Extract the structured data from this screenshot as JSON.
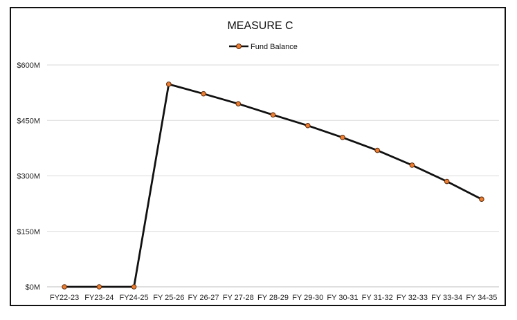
{
  "chart_data": {
    "type": "line",
    "title": "MEASURE C",
    "xlabel": "",
    "ylabel": "",
    "categories": [
      "FY22-23",
      "FY23-24",
      "FY24-25",
      "FY 25-26",
      "FY 26-27",
      "FY 27-28",
      "FY 28-29",
      "FY 29-30",
      "FY 30-31",
      "FY 31-32",
      "FY 32-33",
      "FY 33-34",
      "FY 34-35"
    ],
    "series": [
      {
        "name": "Fund Balance",
        "values": [
          0,
          0,
          0,
          548,
          522,
          495,
          465,
          436,
          404,
          369,
          329,
          285,
          237
        ],
        "color": "#111111",
        "marker_color": "#ed7d31"
      }
    ],
    "y_ticks": [
      {
        "value": 0,
        "label": "$0M"
      },
      {
        "value": 150,
        "label": "$150M"
      },
      {
        "value": 300,
        "label": "$300M"
      },
      {
        "value": 450,
        "label": "$450M"
      },
      {
        "value": 600,
        "label": "$600M"
      }
    ],
    "ylim": [
      0,
      600
    ],
    "y_unit": "$M",
    "grid": true,
    "legend_position": "top-center"
  }
}
